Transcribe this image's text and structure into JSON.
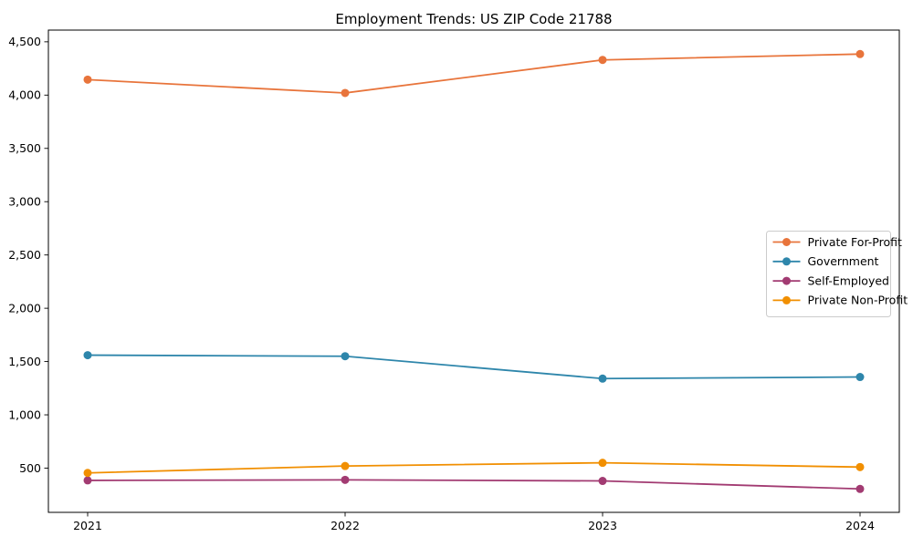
{
  "title": "Employment Trends: US ZIP Code 21788",
  "chart_data": {
    "type": "line",
    "title": "Employment Trends: US ZIP Code 21788",
    "xlabel": "",
    "ylabel": "",
    "categories": [
      "2021",
      "2022",
      "2023",
      "2024"
    ],
    "series": [
      {
        "name": "Private For-Profit",
        "color": "#E8743B",
        "values": [
          4145,
          4020,
          4330,
          4385
        ]
      },
      {
        "name": "Government",
        "color": "#2E86AB",
        "values": [
          1560,
          1550,
          1340,
          1355
        ]
      },
      {
        "name": "Self-Employed",
        "color": "#A23B72",
        "values": [
          385,
          390,
          380,
          305
        ]
      },
      {
        "name": "Private Non-Profit",
        "color": "#F18F01",
        "values": [
          455,
          520,
          550,
          510
        ]
      }
    ],
    "yticks": [
      500,
      1000,
      1500,
      2000,
      2500,
      3000,
      3500,
      4000,
      4500
    ],
    "ytick_labels": [
      "500",
      "1,000",
      "1,500",
      "2,000",
      "2,500",
      "3,000",
      "3,500",
      "4,000",
      "4,500"
    ],
    "ylim": [
      85,
      4610
    ],
    "grid": false,
    "legend_position": "center-right",
    "marker": "circle",
    "axis_color": "#000000",
    "legend_border_color": "#cccccc",
    "background_color": "#ffffff"
  }
}
